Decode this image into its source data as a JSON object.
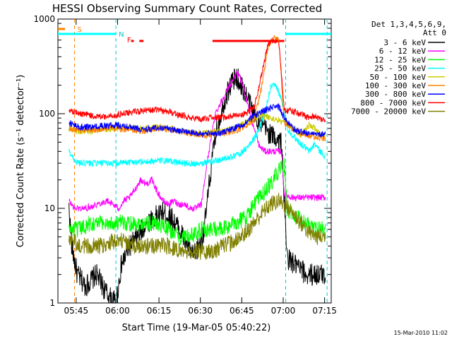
{
  "chart_data": {
    "type": "line",
    "title": "HESSI Observing Summary Count Rates, Corrected",
    "xlabel": "Start Time (19-Mar-05 05:40:22)",
    "ylabel": "Corrected Count Rate (s⁻¹ detector⁻¹)",
    "ylog": true,
    "ylim": [
      1,
      1000
    ],
    "xlim": [
      -2,
      97
    ],
    "x_unit": "minutes after 05:40:22",
    "xticks": [
      {
        "t": 4.6,
        "label": "05:45"
      },
      {
        "t": 19.6,
        "label": "06:00"
      },
      {
        "t": 34.6,
        "label": "06:15"
      },
      {
        "t": 49.6,
        "label": "06:30"
      },
      {
        "t": 64.6,
        "label": "06:45"
      },
      {
        "t": 79.6,
        "label": "07:00"
      },
      {
        "t": 94.6,
        "label": "07:15"
      }
    ],
    "yticks": [
      {
        "v": 1,
        "label": "1"
      },
      {
        "v": 10,
        "label": "10"
      },
      {
        "v": 100,
        "label": "100"
      },
      {
        "v": 1000,
        "label": "1000"
      }
    ],
    "legend_header": [
      "Det 1,3,4,5,6,9,",
      "Att 0"
    ],
    "legend_position": "right",
    "series": [
      {
        "name": "3 - 6 keV",
        "color": "#000000",
        "points": [
          [
            2,
            10
          ],
          [
            3,
            4
          ],
          [
            5,
            2
          ],
          [
            8,
            1.5
          ],
          [
            12,
            2
          ],
          [
            16,
            1.2
          ],
          [
            19,
            1
          ],
          [
            21,
            2.5
          ],
          [
            24,
            4
          ],
          [
            27,
            5
          ],
          [
            30,
            7
          ],
          [
            33,
            8
          ],
          [
            36,
            9
          ],
          [
            39,
            8
          ],
          [
            42,
            6
          ],
          [
            45,
            4
          ],
          [
            47,
            3
          ],
          [
            49,
            4
          ],
          [
            51,
            6
          ],
          [
            53,
            20
          ],
          [
            55,
            60
          ],
          [
            58,
            130
          ],
          [
            61,
            220
          ],
          [
            63,
            240
          ],
          [
            66,
            160
          ],
          [
            69,
            100
          ],
          [
            72,
            75
          ],
          [
            75,
            60
          ],
          [
            77,
            55
          ],
          [
            79,
            50
          ],
          [
            80,
            12
          ],
          [
            81,
            3
          ],
          [
            84,
            2.5
          ],
          [
            88,
            2
          ],
          [
            92,
            2
          ],
          [
            95,
            2
          ]
        ]
      },
      {
        "name": "6 - 12 keV",
        "color": "#ff00ff",
        "points": [
          [
            2,
            12
          ],
          [
            4,
            10
          ],
          [
            8,
            10
          ],
          [
            12,
            11
          ],
          [
            16,
            12
          ],
          [
            20,
            10
          ],
          [
            22,
            12
          ],
          [
            24,
            13
          ],
          [
            26,
            16
          ],
          [
            28,
            20
          ],
          [
            30,
            18
          ],
          [
            32,
            20
          ],
          [
            34,
            15
          ],
          [
            36,
            12
          ],
          [
            38,
            11
          ],
          [
            40,
            12
          ],
          [
            42,
            11
          ],
          [
            44,
            11
          ],
          [
            46,
            10
          ],
          [
            48,
            10
          ],
          [
            50,
            11
          ],
          [
            52,
            30
          ],
          [
            55,
            100
          ],
          [
            58,
            150
          ],
          [
            61,
            220
          ],
          [
            63,
            270
          ],
          [
            65,
            200
          ],
          [
            67,
            120
          ],
          [
            69,
            70
          ],
          [
            71,
            45
          ],
          [
            73,
            40
          ],
          [
            76,
            40
          ],
          [
            79,
            40
          ],
          [
            80,
            14
          ],
          [
            83,
            13
          ],
          [
            86,
            13
          ],
          [
            90,
            13
          ],
          [
            95,
            13
          ]
        ]
      },
      {
        "name": "12 - 25 keV",
        "color": "#00ff00",
        "points": [
          [
            2,
            6
          ],
          [
            6,
            6
          ],
          [
            10,
            7
          ],
          [
            14,
            7
          ],
          [
            18,
            7
          ],
          [
            22,
            7
          ],
          [
            26,
            7
          ],
          [
            30,
            7
          ],
          [
            34,
            7
          ],
          [
            38,
            6
          ],
          [
            42,
            5
          ],
          [
            46,
            5
          ],
          [
            50,
            6
          ],
          [
            54,
            6
          ],
          [
            58,
            6
          ],
          [
            62,
            7
          ],
          [
            66,
            8
          ],
          [
            69,
            11
          ],
          [
            72,
            14
          ],
          [
            75,
            18
          ],
          [
            78,
            25
          ],
          [
            80,
            28
          ],
          [
            81,
            10
          ],
          [
            84,
            8
          ],
          [
            88,
            7
          ],
          [
            92,
            6
          ],
          [
            95,
            6
          ]
        ]
      },
      {
        "name": "25 - 50 keV",
        "color": "#00ffff",
        "points": [
          [
            2,
            40
          ],
          [
            5,
            30
          ],
          [
            10,
            30
          ],
          [
            15,
            30
          ],
          [
            20,
            30
          ],
          [
            25,
            31
          ],
          [
            30,
            31
          ],
          [
            35,
            32
          ],
          [
            40,
            31
          ],
          [
            45,
            30
          ],
          [
            50,
            30
          ],
          [
            55,
            32
          ],
          [
            60,
            34
          ],
          [
            64,
            38
          ],
          [
            67,
            45
          ],
          [
            70,
            60
          ],
          [
            73,
            100
          ],
          [
            75,
            190
          ],
          [
            77,
            200
          ],
          [
            79,
            140
          ],
          [
            81,
            70
          ],
          [
            84,
            55
          ],
          [
            87,
            45
          ],
          [
            89,
            40
          ],
          [
            91,
            48
          ],
          [
            93,
            40
          ],
          [
            95,
            35
          ]
        ]
      },
      {
        "name": "50 - 100 keV",
        "color": "#cccc00",
        "points": [
          [
            2,
            70
          ],
          [
            6,
            65
          ],
          [
            10,
            65
          ],
          [
            14,
            68
          ],
          [
            18,
            70
          ],
          [
            22,
            70
          ],
          [
            26,
            70
          ],
          [
            30,
            70
          ],
          [
            34,
            72
          ],
          [
            38,
            70
          ],
          [
            42,
            66
          ],
          [
            46,
            63
          ],
          [
            50,
            62
          ],
          [
            54,
            63
          ],
          [
            58,
            65
          ],
          [
            62,
            70
          ],
          [
            66,
            80
          ],
          [
            69,
            90
          ],
          [
            72,
            95
          ],
          [
            75,
            90
          ],
          [
            78,
            85
          ],
          [
            80,
            80
          ],
          [
            83,
            70
          ],
          [
            86,
            60
          ],
          [
            89,
            75
          ],
          [
            91,
            70
          ],
          [
            93,
            60
          ],
          [
            95,
            60
          ]
        ]
      },
      {
        "name": "100 - 300 keV",
        "color": "#ff8000",
        "points": [
          [
            2,
            70
          ],
          [
            6,
            68
          ],
          [
            10,
            68
          ],
          [
            14,
            68
          ],
          [
            18,
            70
          ],
          [
            22,
            68
          ],
          [
            26,
            66
          ],
          [
            30,
            66
          ],
          [
            34,
            70
          ],
          [
            38,
            68
          ],
          [
            42,
            65
          ],
          [
            46,
            62
          ],
          [
            50,
            60
          ],
          [
            54,
            60
          ],
          [
            58,
            62
          ],
          [
            62,
            65
          ],
          [
            66,
            75
          ],
          [
            69,
            85
          ],
          [
            72,
            200
          ],
          [
            74,
            500
          ],
          [
            76,
            650
          ],
          [
            78,
            600
          ],
          [
            80,
            80
          ],
          [
            83,
            70
          ],
          [
            86,
            62
          ],
          [
            90,
            58
          ],
          [
            95,
            55
          ]
        ]
      },
      {
        "name": "300 - 800 keV",
        "color": "#0000ff",
        "points": [
          [
            2,
            80
          ],
          [
            6,
            72
          ],
          [
            10,
            72
          ],
          [
            14,
            74
          ],
          [
            18,
            76
          ],
          [
            22,
            74
          ],
          [
            26,
            70
          ],
          [
            30,
            68
          ],
          [
            34,
            72
          ],
          [
            38,
            70
          ],
          [
            42,
            66
          ],
          [
            46,
            64
          ],
          [
            50,
            60
          ],
          [
            54,
            62
          ],
          [
            58,
            64
          ],
          [
            62,
            70
          ],
          [
            66,
            80
          ],
          [
            69,
            95
          ],
          [
            72,
            105
          ],
          [
            75,
            115
          ],
          [
            78,
            120
          ],
          [
            80,
            90
          ],
          [
            83,
            70
          ],
          [
            86,
            64
          ],
          [
            90,
            62
          ],
          [
            95,
            60
          ]
        ]
      },
      {
        "name": "800 - 7000 keV",
        "color": "#ff0000",
        "points": [
          [
            2,
            110
          ],
          [
            6,
            100
          ],
          [
            10,
            95
          ],
          [
            14,
            92
          ],
          [
            18,
            95
          ],
          [
            22,
            100
          ],
          [
            26,
            105
          ],
          [
            30,
            108
          ],
          [
            34,
            110
          ],
          [
            38,
            105
          ],
          [
            42,
            98
          ],
          [
            46,
            90
          ],
          [
            50,
            88
          ],
          [
            54,
            90
          ],
          [
            58,
            92
          ],
          [
            62,
            96
          ],
          [
            66,
            100
          ],
          [
            69,
            115
          ],
          [
            72,
            280
          ],
          [
            74,
            520
          ],
          [
            76,
            600
          ],
          [
            78,
            580
          ],
          [
            80,
            110
          ],
          [
            83,
            105
          ],
          [
            86,
            100
          ],
          [
            89,
            90
          ],
          [
            91,
            95
          ],
          [
            93,
            88
          ],
          [
            95,
            85
          ]
        ]
      },
      {
        "name": "7000 - 20000 keV",
        "color": "#808000",
        "points": [
          [
            2,
            5
          ],
          [
            6,
            4
          ],
          [
            10,
            4
          ],
          [
            14,
            4
          ],
          [
            18,
            4.5
          ],
          [
            22,
            4.5
          ],
          [
            26,
            4
          ],
          [
            30,
            4
          ],
          [
            34,
            4
          ],
          [
            38,
            4
          ],
          [
            42,
            3.5
          ],
          [
            46,
            3.5
          ],
          [
            50,
            3.5
          ],
          [
            54,
            3.5
          ],
          [
            58,
            4
          ],
          [
            62,
            4.5
          ],
          [
            66,
            5.5
          ],
          [
            69,
            7
          ],
          [
            72,
            9
          ],
          [
            75,
            11
          ],
          [
            78,
            12
          ],
          [
            80,
            11
          ],
          [
            83,
            9
          ],
          [
            86,
            7
          ],
          [
            89,
            5.5
          ],
          [
            92,
            5
          ],
          [
            95,
            5
          ]
        ]
      }
    ],
    "annotations": [
      {
        "label": "S",
        "color": "#ff8000",
        "t": 4
      },
      {
        "label": "N",
        "color": "#00cccc",
        "t": 19
      },
      {
        "label": "F",
        "color": "#ff0000",
        "t": 22
      }
    ]
  },
  "timestamp": "15-Mar-2010 11:02"
}
